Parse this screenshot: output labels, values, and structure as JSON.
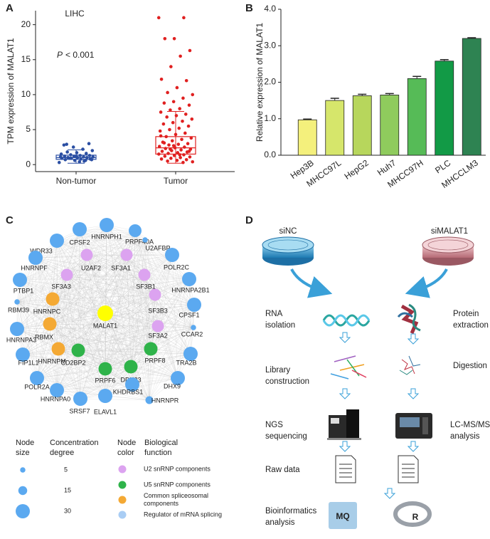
{
  "panel_labels": [
    "A",
    "B",
    "C",
    "D"
  ],
  "chart_data": [
    {
      "type": "box",
      "title": "LIHC",
      "annotation": {
        "italic": "P",
        "text": "< 0.001"
      },
      "y_label": "TPM expression of MALAT1",
      "categories": [
        "Non-tumor",
        "Tumor"
      ],
      "groups": [
        {
          "color": "#2b4fa3",
          "whisker_low": 0.2,
          "q1": 0.75,
          "median": 1.0,
          "q3": 1.35,
          "whisker_high": 2.1,
          "points": [
            0.3,
            0.5,
            0.6,
            0.7,
            0.8,
            0.8,
            0.9,
            0.9,
            1.0,
            1.0,
            1.0,
            1.1,
            1.1,
            1.2,
            1.2,
            1.3,
            1.3,
            1.4,
            1.5,
            1.6,
            1.7,
            1.8,
            2.0,
            2.2,
            2.5,
            2.8,
            3.0,
            0.4,
            0.9,
            1.1,
            0.6,
            1.2,
            2.9,
            0.7
          ]
        },
        {
          "color": "#e02020",
          "whisker_low": 0.2,
          "q1": 1.5,
          "median": 2.4,
          "q3": 4.0,
          "whisker_high": 7.6,
          "points": [
            21.0,
            21.0,
            18.0,
            18.0,
            16.3,
            15.5,
            14.0,
            12.2,
            12.0,
            11.0,
            10.3,
            10.0,
            9.5,
            9.0,
            8.8,
            8.5,
            8.0,
            7.8,
            7.5,
            7.2,
            7.0,
            6.8,
            6.5,
            6.2,
            6.0,
            5.8,
            5.5,
            5.2,
            5.0,
            4.8,
            4.5,
            4.3,
            4.0,
            3.8,
            3.6,
            3.4,
            3.2,
            3.0,
            2.9,
            2.8,
            2.6,
            2.5,
            2.4,
            2.3,
            2.2,
            2.1,
            2.0,
            1.9,
            1.8,
            1.7,
            1.6,
            1.5,
            1.4,
            1.3,
            1.2,
            1.1,
            1.0,
            0.9,
            0.8,
            0.7,
            0.6,
            0.5,
            0.4,
            0.3,
            2.7,
            3.1,
            1.9,
            1.4,
            2.2,
            4.1
          ]
        }
      ],
      "ylim": [
        -1,
        22
      ],
      "yticks": [
        0,
        5,
        10,
        15,
        20
      ]
    },
    {
      "type": "bar",
      "y_label": "Relative expression of MALAT1",
      "categories": [
        "Hep3B",
        "MHCC97L",
        "HepG2",
        "Huh7",
        "MHCC97H",
        "PLC",
        "MHCCLM3"
      ],
      "values": [
        0.97,
        1.5,
        1.63,
        1.65,
        2.1,
        2.58,
        3.2
      ],
      "errors": [
        0.02,
        0.06,
        0.04,
        0.04,
        0.06,
        0.04,
        0.02
      ],
      "colors": [
        "#f4f07c",
        "#d6e66b",
        "#b7d65c",
        "#8fcb5d",
        "#56bb57",
        "#129a46",
        "#2e8352"
      ],
      "ylim": [
        0,
        4
      ],
      "yticks": [
        {
          "value": 0,
          "label": "0.0"
        },
        {
          "value": 1,
          "label": "1.0"
        },
        {
          "value": 2,
          "label": "2.0"
        },
        {
          "value": 3,
          "label": "3.0"
        },
        {
          "value": 4,
          "label": "4.0"
        }
      ]
    }
  ],
  "network": {
    "nodes": [
      {
        "label": "MALAT1",
        "color": "#ffff00",
        "degree": 34
      },
      {
        "label": "U2AF2",
        "color": "#dca3f0",
        "degree": 24
      },
      {
        "label": "SF3A1",
        "color": "#dca3f0",
        "degree": 24
      },
      {
        "label": "SF3A3",
        "color": "#dca3f0",
        "degree": 24
      },
      {
        "label": "SF3B1",
        "color": "#dca3f0",
        "degree": 24
      },
      {
        "label": "SF3B3",
        "color": "#dca3f0",
        "degree": 24
      },
      {
        "label": "SF3A2",
        "color": "#dca3f0",
        "degree": 24
      },
      {
        "label": "HNRNPC",
        "color": "#f4a934",
        "degree": 28
      },
      {
        "label": "RBMX",
        "color": "#f4a934",
        "degree": 28
      },
      {
        "label": "HNRNPM",
        "color": "#f4a934",
        "degree": 28
      },
      {
        "label": "PRPF8",
        "color": "#2fb34a",
        "degree": 28
      },
      {
        "label": "DDX23",
        "color": "#2fb34a",
        "degree": 28
      },
      {
        "label": "PRPF6",
        "color": "#2fb34a",
        "degree": 28
      },
      {
        "label": "CD2BP2",
        "color": "#2fb34a",
        "degree": 28
      },
      {
        "label": "HNRNPH1",
        "color": "#5ba9f0",
        "degree": 30
      },
      {
        "label": "CPSF2",
        "color": "#5ba9f0",
        "degree": 30
      },
      {
        "label": "PRPF40A",
        "color": "#5ba9f0",
        "degree": 26
      },
      {
        "label": "U2AFBP",
        "color": "#5ba9f0",
        "degree": 5
      },
      {
        "label": "WDR33",
        "color": "#5ba9f0",
        "degree": 30
      },
      {
        "label": "POLR2C",
        "color": "#5ba9f0",
        "degree": 30
      },
      {
        "label": "HNRNPF",
        "color": "#5ba9f0",
        "degree": 30
      },
      {
        "label": "HNRNPA2B1",
        "color": "#5ba9f0",
        "degree": 30
      },
      {
        "label": "PTBP1",
        "color": "#5ba9f0",
        "degree": 30
      },
      {
        "label": "RBM39",
        "color": "#5ba9f0",
        "degree": 5
      },
      {
        "label": "CPSF1",
        "color": "#5ba9f0",
        "degree": 30
      },
      {
        "label": "HNRNPA3",
        "color": "#5ba9f0",
        "degree": 30
      },
      {
        "label": "CCAR2",
        "color": "#5ba9f0",
        "degree": 5
      },
      {
        "label": "TRA2B",
        "color": "#5ba9f0",
        "degree": 30
      },
      {
        "label": "FIP1L1",
        "color": "#5ba9f0",
        "degree": 30
      },
      {
        "label": "DHX9",
        "color": "#5ba9f0",
        "degree": 30
      },
      {
        "label": "POLR2A",
        "color": "#5ba9f0",
        "degree": 30
      },
      {
        "label": "HNRNPA0",
        "color": "#5ba9f0",
        "degree": 30
      },
      {
        "label": "SRSF7",
        "color": "#5ba9f0",
        "degree": 30
      },
      {
        "label": "ELAVL1",
        "color": "#5ba9f0",
        "degree": 30
      },
      {
        "label": "KHDRBS1",
        "color": "#5ba9f0",
        "degree": 30
      },
      {
        "label": "HNRNPR",
        "color": "#5ba9f0",
        "degree": 12
      }
    ]
  },
  "legend": {
    "size_title": [
      "Node",
      "size"
    ],
    "degree_title": [
      "Concentration",
      "degree"
    ],
    "color_title": [
      "Node",
      "color"
    ],
    "function_title": [
      "Biological",
      "function"
    ],
    "size_color": "#5ba9f0",
    "sizes": [
      5,
      15,
      30
    ],
    "functions": [
      {
        "label": [
          "U2 snRNP components"
        ],
        "color": "#dca3f0"
      },
      {
        "label": [
          "U5 snRNP components"
        ],
        "color": "#2fb34a"
      },
      {
        "label": [
          "Common spliceosomal",
          "components"
        ],
        "color": "#f4a934"
      },
      {
        "label": [
          "Regulator of mRNA splicing"
        ],
        "color": "#a9cdf4"
      }
    ]
  },
  "workflow": {
    "left_sample": "siNC",
    "right_sample": "siMALAT1",
    "steps": [
      [
        "RNA",
        "isolation"
      ],
      [
        "Protein",
        "extraction"
      ],
      [
        "Library",
        "construction"
      ],
      [
        "Digestion"
      ],
      [
        "NGS",
        "sequencing"
      ],
      [
        "LC-MS/MS",
        "analysis"
      ],
      [
        "Raw data"
      ],
      [
        "Bioinformatics",
        "analysis"
      ]
    ],
    "logos": [
      "MQ",
      "R"
    ]
  }
}
